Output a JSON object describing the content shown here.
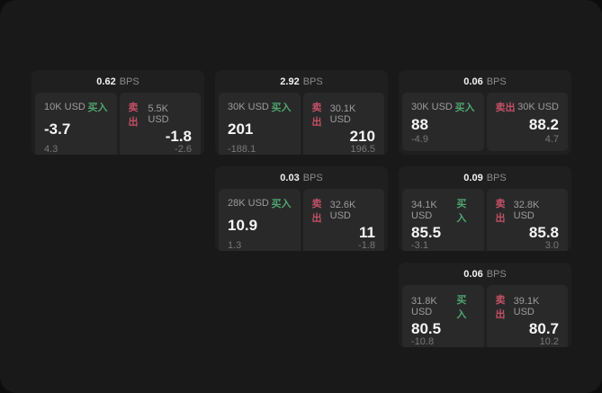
{
  "theme": {
    "page_bg": "#0d0d0d",
    "panel_bg": "#191919",
    "card_bg": "#1f1f20",
    "tile_bg": "#29292a",
    "text_primary": "#f5f5f5",
    "text_secondary": "#9c9c9c",
    "buy_color": "#4fa56e",
    "sell_color": "#c25064"
  },
  "cards": [
    {
      "bps_value": "0.62",
      "bps_unit": "BPS",
      "col": 1,
      "row": 1,
      "buy": {
        "amount": "10K USD",
        "label": "买入",
        "value": "-3.7",
        "delta": "4.3"
      },
      "sell": {
        "label": "卖出",
        "amount": "5.5K USD",
        "value": "-1.8",
        "delta": "-2.6"
      }
    },
    {
      "bps_value": "2.92",
      "bps_unit": "BPS",
      "col": 2,
      "row": 1,
      "buy": {
        "amount": "30K USD",
        "label": "买入",
        "value": "201",
        "delta": "-188.1"
      },
      "sell": {
        "label": "卖出",
        "amount": "30.1K USD",
        "value": "210",
        "delta": "196.5"
      }
    },
    {
      "bps_value": "0.06",
      "bps_unit": "BPS",
      "col": 3,
      "row": 1,
      "buy": {
        "amount": "30K USD",
        "label": "买入",
        "value": "88",
        "delta": "-4.9"
      },
      "sell": {
        "label": "卖出",
        "amount": "30K USD",
        "value": "88.2",
        "delta": "4.7"
      }
    },
    {
      "bps_value": "0.03",
      "bps_unit": "BPS",
      "col": 2,
      "row": 2,
      "buy": {
        "amount": "28K USD",
        "label": "买入",
        "value": "10.9",
        "delta": "1.3"
      },
      "sell": {
        "label": "卖出",
        "amount": "32.6K USD",
        "value": "11",
        "delta": "-1.8"
      }
    },
    {
      "bps_value": "0.09",
      "bps_unit": "BPS",
      "col": 3,
      "row": 2,
      "buy": {
        "amount": "34.1K USD",
        "label": "买入",
        "value": "85.5",
        "delta": "-3.1"
      },
      "sell": {
        "label": "卖出",
        "amount": "32.8K USD",
        "value": "85.8",
        "delta": "3.0"
      }
    },
    {
      "bps_value": "0.06",
      "bps_unit": "BPS",
      "col": 3,
      "row": 3,
      "buy": {
        "amount": "31.8K USD",
        "label": "买入",
        "value": "80.5",
        "delta": "-10.8"
      },
      "sell": {
        "label": "卖出",
        "amount": "39.1K USD",
        "value": "80.7",
        "delta": "10.2"
      }
    }
  ]
}
